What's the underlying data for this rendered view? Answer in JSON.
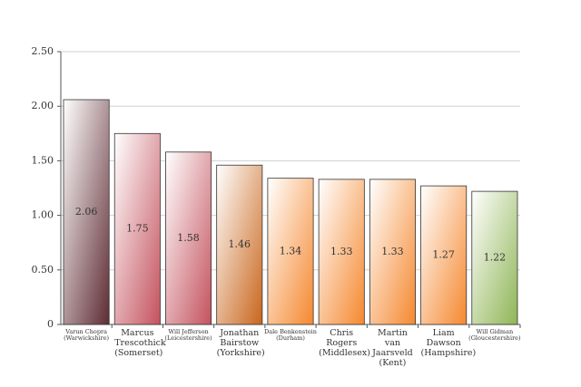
{
  "chart_data": {
    "type": "bar",
    "categories": [
      "Varun Chopra (Warwickshire)",
      "Marcus Trescothick (Somerset)",
      "Will Jefferson (Leicestershire)",
      "Jonathan Bairstow (Yorkshire)",
      "Dale Benkenstein (Durham)",
      "Chris Rogers (Middlesex)",
      "Martin van Jaarsveld (Kent)",
      "Liam Dawson (Hampshire)",
      "Will Gidman (Gloucestershire)"
    ],
    "values": [
      2.06,
      1.75,
      1.58,
      1.46,
      1.34,
      1.33,
      1.33,
      1.27,
      1.22
    ],
    "colors": [
      "#5e2b33",
      "#c4525e",
      "#c4525e",
      "#c9661c",
      "#f5882f",
      "#f5882f",
      "#f5882f",
      "#f5882f",
      "#8fb556"
    ],
    "ylim": [
      0,
      2.5
    ],
    "yticks": [
      0,
      {
        "value": 0.5,
        "label": "0.50"
      },
      {
        "value": 1,
        "label": "1.00"
      },
      {
        "value": 1.5,
        "label": "1.50"
      },
      {
        "value": 2,
        "label": "2.00"
      },
      {
        "value": 2.5,
        "label": "2.50"
      }
    ],
    "grid": true
  }
}
